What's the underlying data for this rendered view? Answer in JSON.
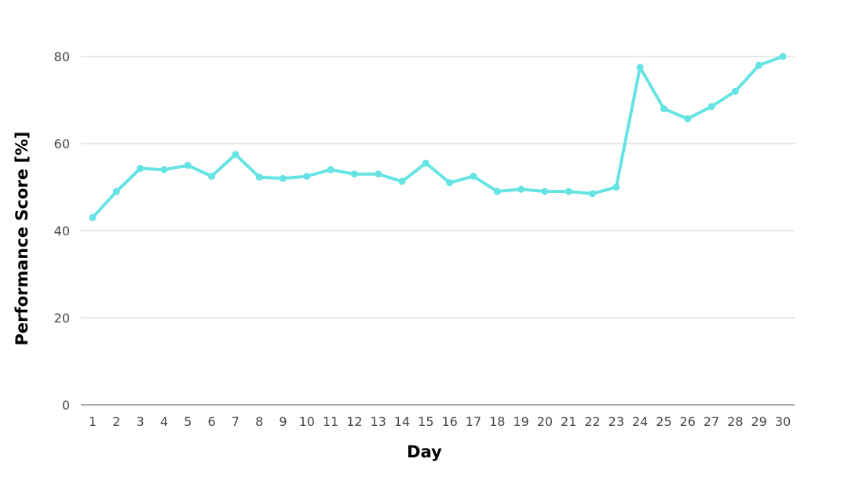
{
  "chart_data": {
    "type": "line",
    "title": "",
    "xlabel": "Day",
    "ylabel": "Performance Score [%]",
    "categories": [
      "1",
      "2",
      "3",
      "4",
      "5",
      "6",
      "7",
      "8",
      "9",
      "10",
      "11",
      "12",
      "13",
      "14",
      "15",
      "16",
      "17",
      "18",
      "19",
      "20",
      "21",
      "22",
      "23",
      "24",
      "25",
      "26",
      "27",
      "28",
      "29",
      "30"
    ],
    "series": [
      {
        "values": [
          43,
          49,
          54.3,
          54,
          55,
          52.5,
          57.5,
          52.3,
          52,
          52.5,
          54,
          53,
          53,
          51.3,
          55.5,
          51,
          52.5,
          49,
          49.5,
          49,
          49,
          48.5,
          50,
          77.5,
          68,
          65.7,
          68.5,
          72,
          78,
          80
        ],
        "color": "#66e3e3"
      }
    ],
    "yticks": [
      "0",
      "20",
      "40",
      "60",
      "80"
    ],
    "ylim": [
      0,
      80
    ],
    "grid": "horizontal",
    "legend": "none"
  }
}
